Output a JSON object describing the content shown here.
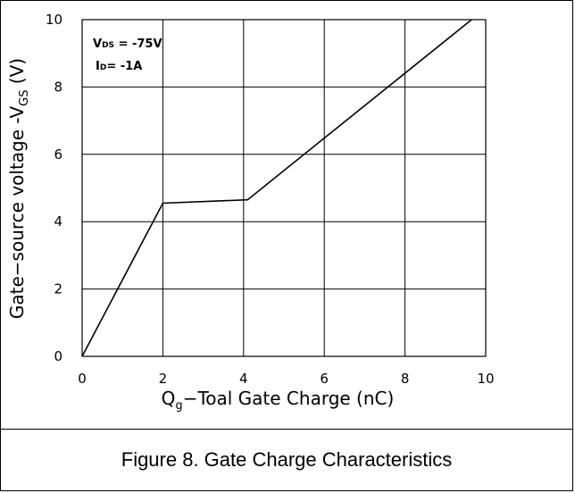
{
  "caption": "Figure 8. Gate Charge Characteristics",
  "chart_data": {
    "type": "line",
    "xlabel": {
      "main": "Q",
      "sub": "g",
      "rest": "−Toal Gate Charge  (nC)"
    },
    "ylabel": {
      "main": "Gate−source voltage -V",
      "sub": "GS",
      "rest": " (V)"
    },
    "xlim": [
      0,
      10
    ],
    "ylim": [
      0,
      10
    ],
    "x_ticks": [
      "0",
      "2",
      "4",
      "6",
      "8",
      "10"
    ],
    "y_ticks": [
      "0",
      "2",
      "4",
      "6",
      "8",
      "10"
    ],
    "grid": true,
    "annotations": [
      {
        "main": "V",
        "sub": "DS",
        "rest": " = -75V"
      },
      {
        "main": "I",
        "sub": "D",
        "rest": "= -1A"
      }
    ],
    "series": [
      {
        "x": [
          0,
          2.0,
          4.1,
          9.65
        ],
        "y": [
          0,
          4.55,
          4.65,
          10.0
        ],
        "color": "#000000"
      }
    ]
  }
}
